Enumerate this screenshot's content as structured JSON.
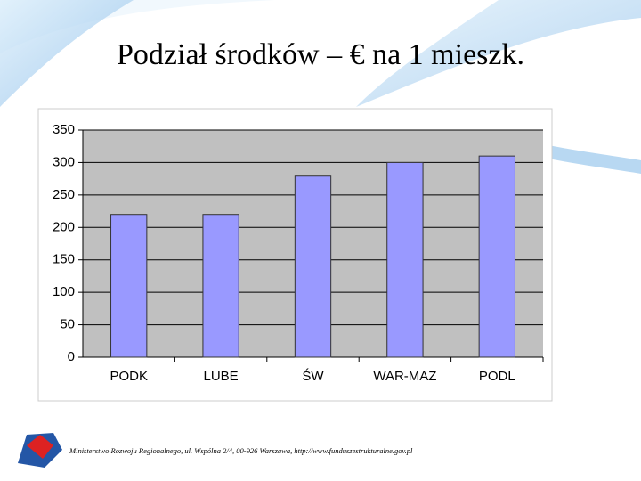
{
  "chart_data": {
    "type": "bar",
    "title": "Podział środków – € na 1 mieszk.",
    "categories": [
      "PODK",
      "LUBE",
      "ŚW",
      "WAR-MAZ",
      "PODL"
    ],
    "values": [
      220,
      220,
      279,
      300,
      310
    ],
    "color": "#9999ff",
    "ylim": [
      0,
      350
    ],
    "yticks": [
      0,
      50,
      100,
      150,
      200,
      250,
      300,
      350
    ],
    "grid": true
  },
  "footer": "Ministerstwo Rozwoju Regionalnego, ul. Wspólna 2/4, 00-926 Warszawa, http://www.funduszestrukturalne.gov.pl"
}
